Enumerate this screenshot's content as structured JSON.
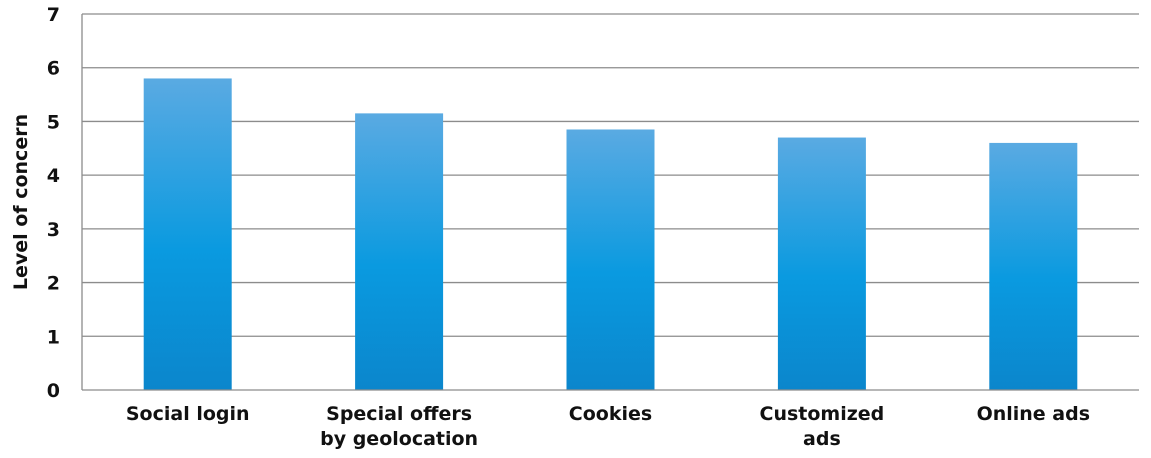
{
  "chart_data": {
    "type": "bar",
    "categories": [
      [
        "Social login"
      ],
      [
        "Special offers",
        "by geolocation"
      ],
      [
        "Cookies"
      ],
      [
        "Customized",
        "ads"
      ],
      [
        "Online ads"
      ]
    ],
    "values": [
      5.8,
      5.15,
      4.85,
      4.7,
      4.6
    ],
    "xlabel": "",
    "ylabel": "Level of concern",
    "ylim": [
      0,
      7
    ],
    "yticks": [
      "0",
      "1",
      "2",
      "3",
      "4",
      "5",
      "6",
      "7"
    ],
    "grid": true,
    "legend": "none",
    "colors": {
      "bar_top": "#5aaae2",
      "bar_mid": "#0a9ae0",
      "bar_bottom": "#0b86cc",
      "grid": "#8c8c8c",
      "axis": "#8c8c8c",
      "text": "#111111"
    }
  }
}
